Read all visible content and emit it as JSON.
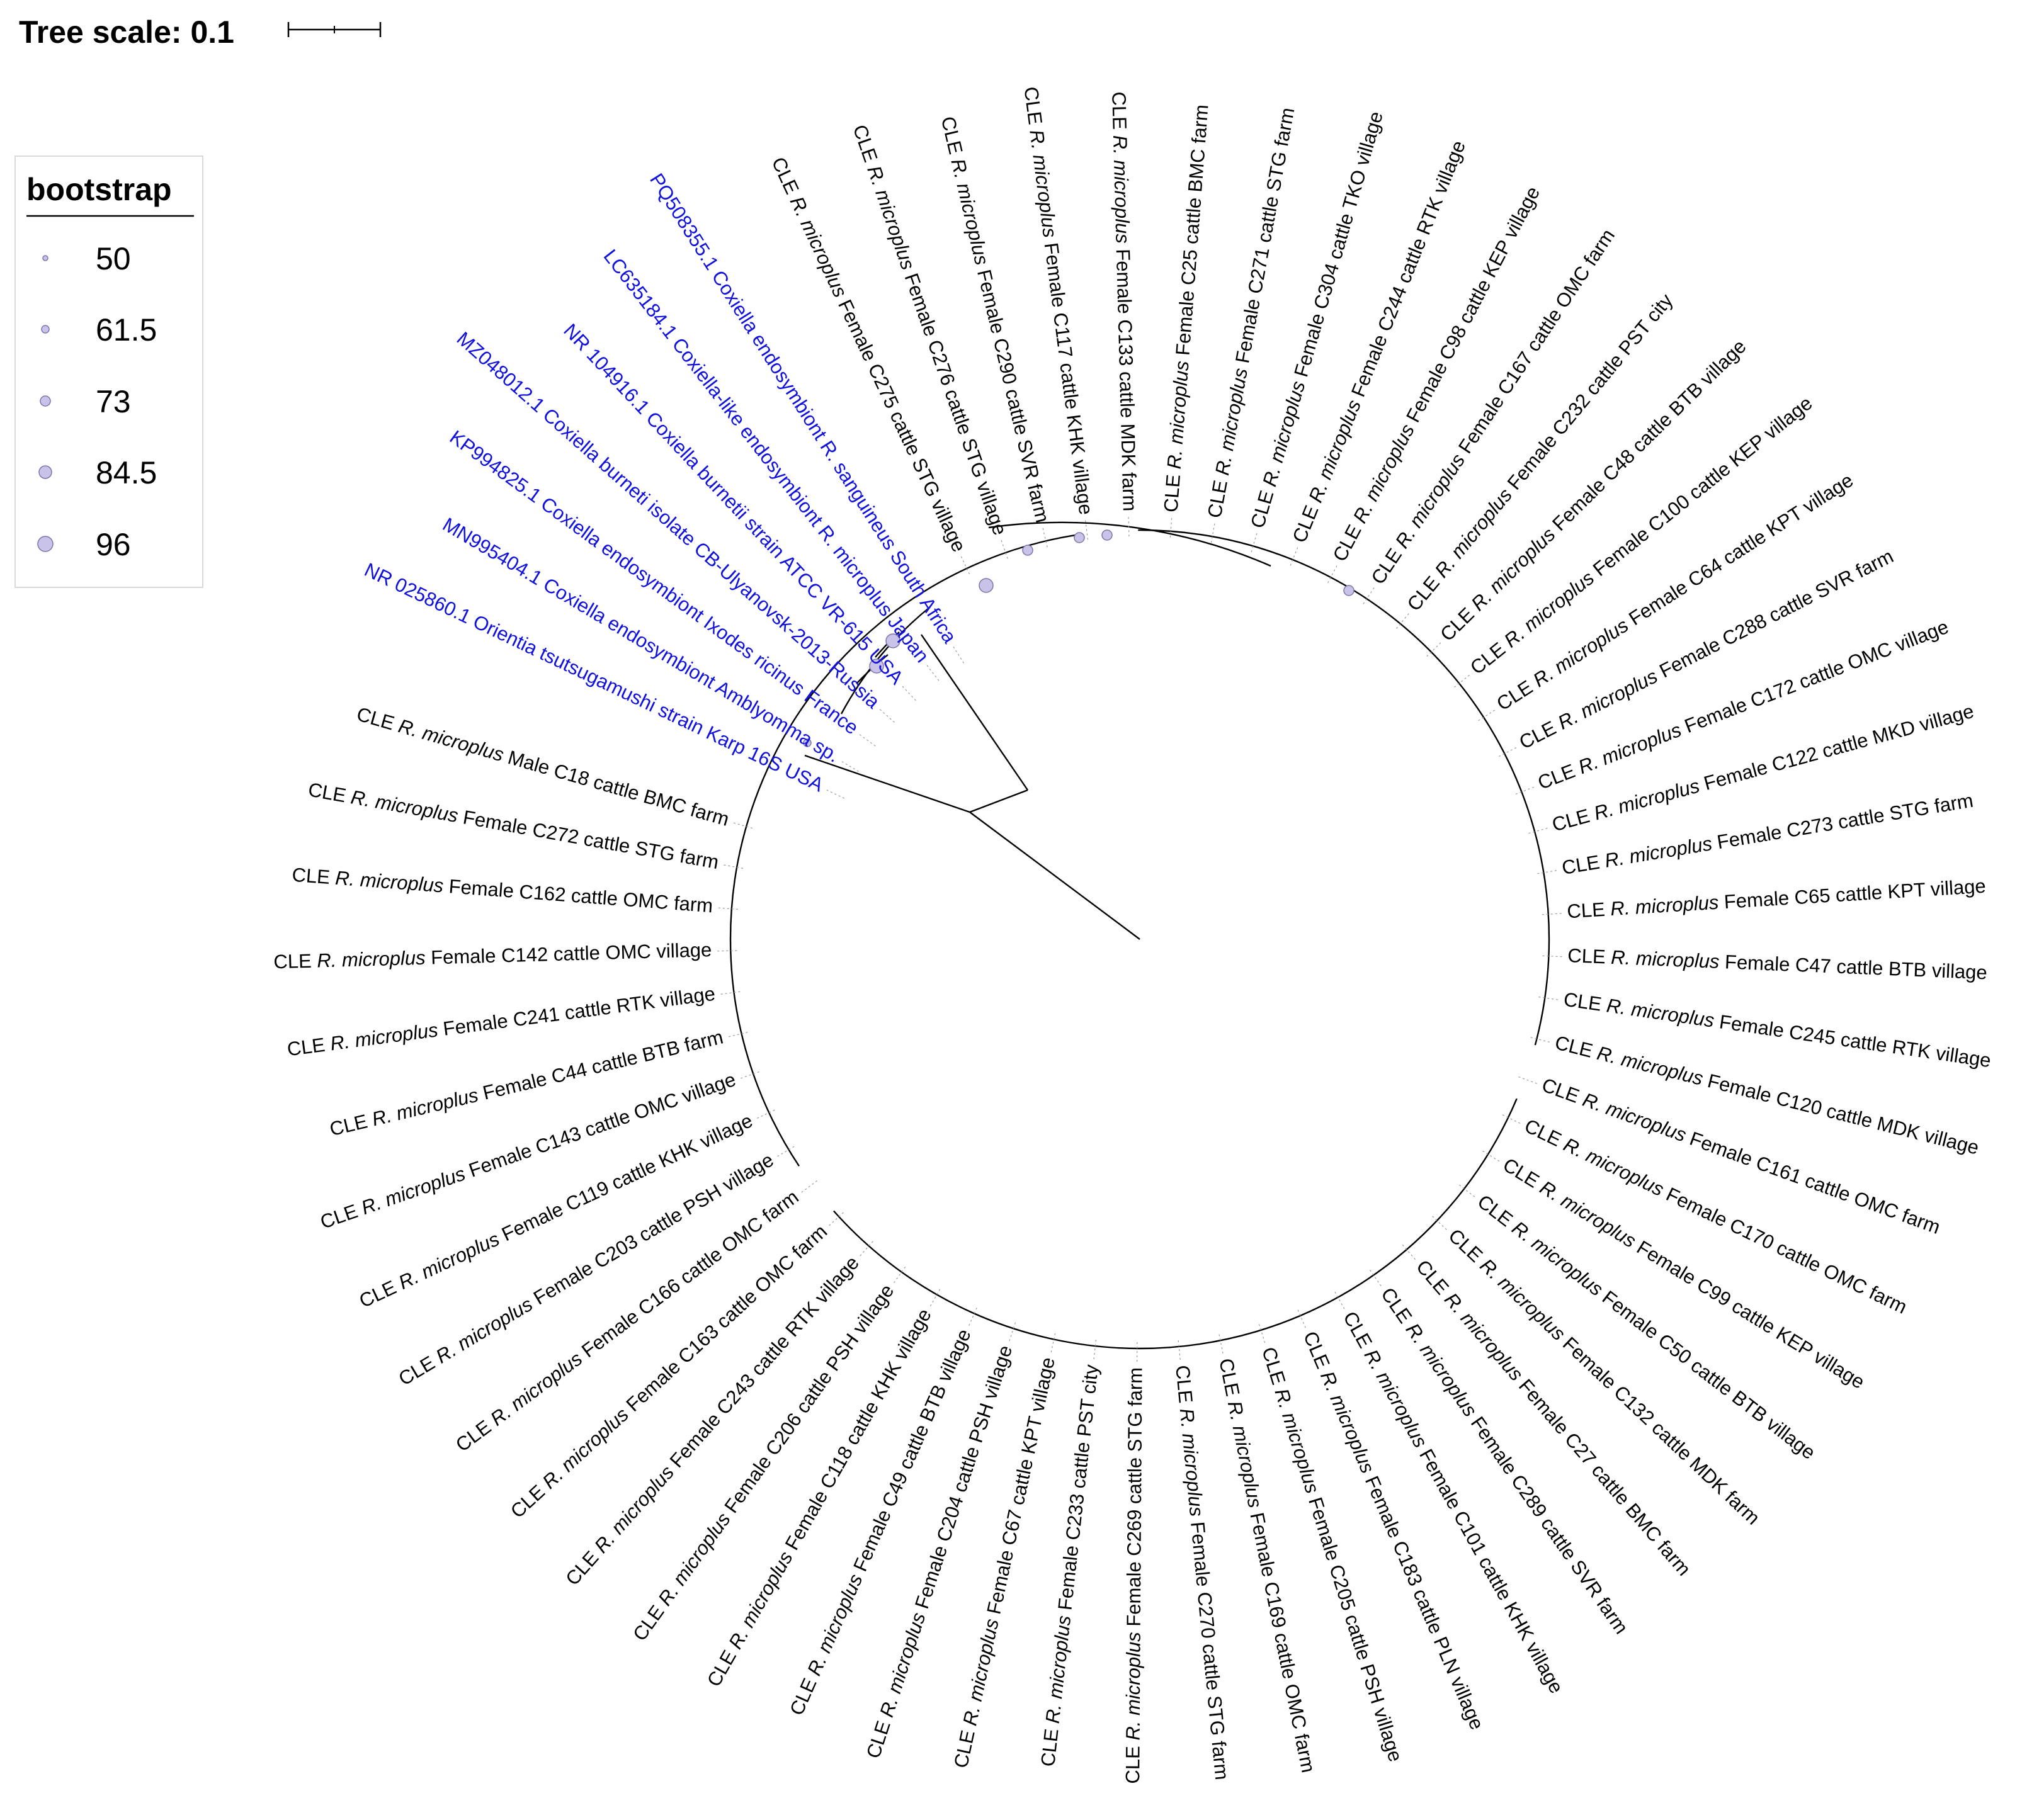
{
  "scale": {
    "label": "Tree scale:",
    "value": "0.1"
  },
  "legend": {
    "title": "bootstrap",
    "items": [
      "50",
      "61.5",
      "73",
      "84.5",
      "96"
    ],
    "circle_fill": "#c9c3ea",
    "circle_stroke": "#7b76a8"
  },
  "colors": {
    "reference": "#1010e0",
    "sample": "#000000"
  },
  "tree": {
    "reference_leaves": [
      "NR 025860.1 Orientia tsutsugamushi strain Karp 16S USA",
      "MN995404.1 Coxiella endosymbiont Amblyomma sp.",
      "KP994825.1 Coxiella endosymbiont Ixodes ricinus France",
      "MZ048012.1 Coxiella burneti isolate CB-Ulyanovsk-2013-Russia",
      "NR 104916.1 Coxiella burnetii strain ATCC VR-615 USA",
      "LC635184.1 Coxiella-like endosymbiont R. microplus Japan",
      "PQ508355.1 Coxiella endosymbiont R. sanguineus South Africa"
    ],
    "sample_prefix": "CLE",
    "sample_species": "R. microplus",
    "sample_leaves": [
      "Female C275 cattle STG village",
      "Female C276 cattle STG village",
      "Female C290 cattle SVR farm",
      "Female C117 cattle KHK village",
      "Female C133 cattle MDK farm",
      "Female C25 cattle BMC farm",
      "Female C271 cattle STG farm",
      "Female C304 cattle TKO village",
      "Female C244 cattle RTK village",
      "Female C98 cattle KEP village",
      "Female C167 cattle OMC farm",
      "Female C232 cattle PST city",
      "Female C48 cattle BTB village",
      "Female C100 cattle KEP village",
      "Female C64 cattle KPT village",
      "Female C288 cattle SVR farm",
      "Female C172 cattle OMC village",
      "Female C122 cattle MKD village",
      "Female C273 cattle STG farm",
      "Female C65 cattle KPT village",
      "Female C47 cattle BTB village",
      "Female C245 cattle RTK village",
      "Female C120 cattle MDK village",
      "Female C161 cattle OMC farm",
      "Female C170 cattle OMC farm",
      "Female C99 cattle KEP village",
      "Female C50 cattle BTB village",
      "Female C132 cattle MDK farm",
      "Female C27 cattle BMC farm",
      "Female C289 cattle SVR farm",
      "Female C101 cattle KHK village",
      "Female C183 cattle PLN village",
      "Female C205 cattle PSH village",
      "Female C169 cattle OMC farm",
      "Female C270 cattle STG farm",
      "Female C269 cattle STG farm",
      "Female C233 cattle PST city",
      "Female C67 cattle KPT village",
      "Female C204 cattle PSH village",
      "Female C49 cattle BTB village",
      "Female C118 cattle KHK village",
      "Female C206 cattle PSH village",
      "Female C243 cattle RTK village",
      "Female C163 cattle OMC farm",
      "Female C166 cattle OMC farm",
      "Female C203 cattle PSH village",
      "Female C119 cattle KHK village",
      "Female C143 cattle OMC village",
      "Female C44 cattle BTB farm",
      "Female C241 cattle RTK village",
      "Female C142 cattle OMC village",
      "Female C162 cattle OMC farm",
      "Female C272 cattle STG farm",
      "Male C18 cattle BMC farm"
    ]
  }
}
